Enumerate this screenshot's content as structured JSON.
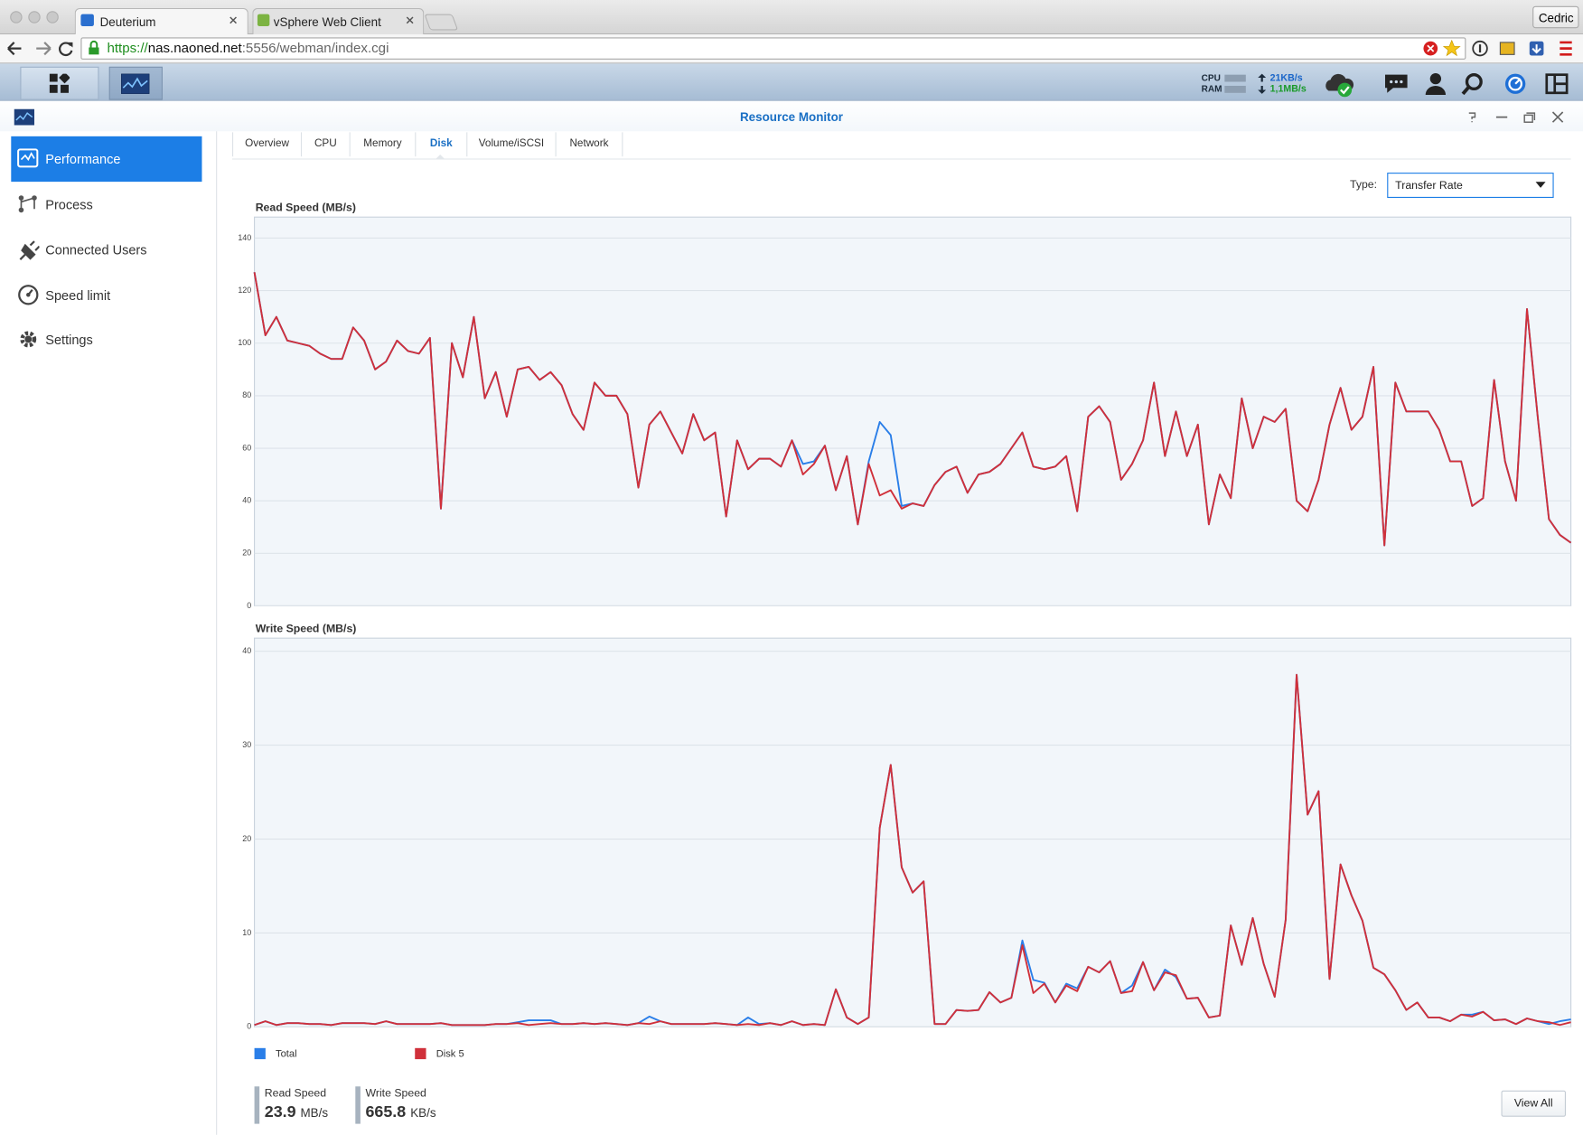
{
  "browser": {
    "tabs": [
      "Deuterium",
      "vSphere Web Client"
    ],
    "url_scheme": "https://",
    "url_host": "nas.naoned.net",
    "url_path": ":5556/webman/index.cgi",
    "user": "Cedric"
  },
  "taskbar": {
    "cpu": "CPU",
    "ram": "RAM",
    "upload": "21KB/s",
    "download": "1,1MB/s"
  },
  "window": {
    "title": "Resource Monitor"
  },
  "sidebar": [
    "Performance",
    "Process",
    "Connected Users",
    "Speed limit",
    "Settings"
  ],
  "tabs": [
    "Overview",
    "CPU",
    "Memory",
    "Disk",
    "Volume/iSCSI",
    "Network"
  ],
  "type_filter": {
    "label": "Type:",
    "value": "Transfer Rate"
  },
  "chart_data": [
    {
      "type": "line",
      "title": "Read Speed (MB/s)",
      "ylim": [
        0,
        148
      ],
      "yticks": [
        0,
        20,
        40,
        60,
        80,
        100,
        120,
        140
      ],
      "grid": true,
      "series": [
        {
          "color": "#2a7ee8",
          "values": [
            127,
            103,
            110,
            101,
            100,
            99,
            96,
            94,
            94,
            106,
            101,
            90,
            93,
            101,
            97,
            96,
            102,
            37,
            100,
            87,
            110,
            79,
            89,
            72,
            90,
            91,
            86,
            89,
            84,
            73,
            67,
            85,
            80,
            80,
            73,
            45,
            69,
            74,
            66,
            58,
            73,
            63,
            66,
            34,
            63,
            52,
            56,
            56,
            53,
            63,
            54,
            55,
            61,
            44,
            57,
            31,
            55,
            70,
            65,
            38,
            39,
            38,
            46,
            51,
            53,
            43,
            50,
            51,
            54,
            60,
            66,
            53,
            52,
            53,
            57,
            36,
            72,
            76,
            70,
            48,
            54,
            63,
            85,
            57,
            74,
            57,
            69,
            31,
            50,
            41,
            79,
            60,
            72,
            70,
            75,
            40,
            36,
            48,
            69,
            83,
            67,
            72,
            91,
            23,
            85,
            74,
            74,
            74,
            67,
            55,
            55,
            38,
            41,
            86,
            55,
            40,
            113,
            71,
            33,
            27,
            24
          ]
        },
        {
          "color": "#d0303a",
          "values": [
            127,
            103,
            110,
            101,
            100,
            99,
            96,
            94,
            94,
            106,
            101,
            90,
            93,
            101,
            97,
            96,
            102,
            37,
            100,
            87,
            110,
            79,
            89,
            72,
            90,
            91,
            86,
            89,
            84,
            73,
            67,
            85,
            80,
            80,
            73,
            45,
            69,
            74,
            66,
            58,
            73,
            63,
            66,
            34,
            63,
            52,
            56,
            56,
            53,
            63,
            50,
            54,
            61,
            44,
            57,
            31,
            54,
            42,
            44,
            37,
            39,
            38,
            46,
            51,
            53,
            43,
            50,
            51,
            54,
            60,
            66,
            53,
            52,
            53,
            57,
            36,
            72,
            76,
            70,
            48,
            54,
            63,
            85,
            57,
            74,
            57,
            69,
            31,
            50,
            41,
            79,
            60,
            72,
            70,
            75,
            40,
            36,
            48,
            69,
            83,
            67,
            72,
            91,
            23,
            85,
            74,
            74,
            74,
            67,
            55,
            55,
            38,
            41,
            86,
            55,
            40,
            113,
            71,
            33,
            27,
            24
          ]
        }
      ]
    },
    {
      "type": "line",
      "title": "Write Speed (MB/s)",
      "ylim": [
        0,
        41.4
      ],
      "yticks": [
        0,
        10,
        20,
        30,
        40
      ],
      "grid": true,
      "series": [
        {
          "name": "Total",
          "color": "#2a7ee8",
          "values": [
            0.2,
            0.6,
            0.2,
            0.4,
            0.4,
            0.3,
            0.3,
            0.2,
            0.4,
            0.4,
            0.4,
            0.3,
            0.6,
            0.3,
            0.3,
            0.3,
            0.3,
            0.4,
            0.2,
            0.2,
            0.2,
            0.2,
            0.3,
            0.3,
            0.5,
            0.7,
            0.7,
            0.7,
            0.3,
            0.3,
            0.4,
            0.3,
            0.4,
            0.3,
            0.2,
            0.4,
            1.1,
            0.6,
            0.3,
            0.3,
            0.3,
            0.3,
            0.4,
            0.3,
            0.2,
            1.0,
            0.3,
            0.4,
            0.2,
            0.6,
            0.2,
            0.3,
            0.2,
            4.0,
            1.0,
            0.3,
            1.0,
            21.2,
            27.9,
            17.0,
            14.3,
            15.5,
            0.3,
            0.3,
            1.8,
            1.7,
            1.8,
            3.7,
            2.6,
            3.1,
            9.2,
            5.0,
            4.7,
            2.6,
            4.6,
            4.1,
            6.4,
            5.8,
            7.0,
            3.6,
            4.4,
            6.9,
            3.9,
            6.1,
            5.3,
            3.0,
            3.1,
            1.0,
            1.2,
            10.8,
            6.6,
            11.6,
            6.7,
            3.2,
            11.4,
            37.5,
            22.6,
            25.1,
            5.1,
            17.3,
            14.0,
            11.3,
            6.3,
            5.6,
            3.9,
            1.8,
            2.6,
            1.0,
            1.0,
            0.6,
            1.3,
            1.3,
            1.6,
            0.7,
            0.8,
            0.3,
            0.9,
            0.6,
            0.3,
            0.6,
            0.8
          ]
        },
        {
          "name": "Disk 5",
          "color": "#d0303a",
          "values": [
            0.2,
            0.6,
            0.2,
            0.4,
            0.4,
            0.3,
            0.3,
            0.2,
            0.4,
            0.4,
            0.4,
            0.3,
            0.6,
            0.3,
            0.3,
            0.3,
            0.3,
            0.4,
            0.2,
            0.2,
            0.2,
            0.2,
            0.3,
            0.3,
            0.4,
            0.2,
            0.3,
            0.4,
            0.3,
            0.3,
            0.4,
            0.3,
            0.4,
            0.3,
            0.2,
            0.4,
            0.3,
            0.6,
            0.3,
            0.3,
            0.3,
            0.3,
            0.4,
            0.3,
            0.2,
            0.3,
            0.2,
            0.4,
            0.2,
            0.6,
            0.2,
            0.3,
            0.2,
            4.0,
            1.0,
            0.3,
            1.0,
            21.2,
            27.9,
            17.0,
            14.3,
            15.5,
            0.3,
            0.3,
            1.8,
            1.7,
            1.8,
            3.7,
            2.6,
            3.1,
            8.7,
            3.6,
            4.6,
            2.6,
            4.4,
            3.8,
            6.4,
            5.8,
            7.0,
            3.6,
            3.8,
            6.9,
            3.9,
            5.8,
            5.5,
            3.0,
            3.1,
            1.0,
            1.2,
            10.8,
            6.6,
            11.6,
            6.7,
            3.2,
            11.4,
            37.5,
            22.6,
            25.1,
            5.1,
            17.3,
            14.0,
            11.3,
            6.3,
            5.6,
            3.9,
            1.8,
            2.6,
            1.0,
            1.0,
            0.6,
            1.3,
            1.1,
            1.6,
            0.7,
            0.8,
            0.3,
            0.9,
            0.6,
            0.5,
            0.2,
            0.5
          ]
        }
      ]
    }
  ],
  "summary": [
    {
      "label": "Read Speed",
      "value": 23.9,
      "unit": "MB/s"
    },
    {
      "label": "Write Speed",
      "value": 665.8,
      "unit": "KB/s"
    }
  ],
  "button": "View All"
}
